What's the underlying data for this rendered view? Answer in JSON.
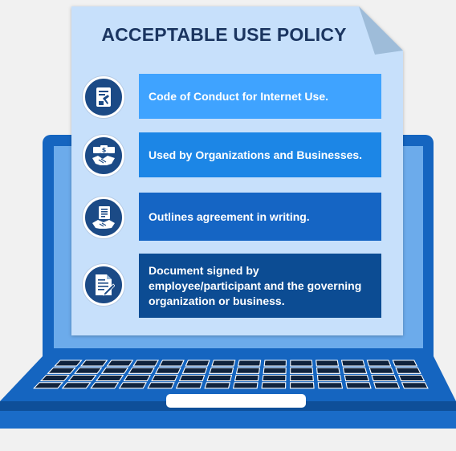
{
  "title": "ACCEPTABLE USE POLICY",
  "items": [
    {
      "text": "Code of Conduct for Internet Use.",
      "icon": "legal-document-icon"
    },
    {
      "text": "Used by Organizations and Businesses.",
      "icon": "business-handshake-icon"
    },
    {
      "text": "Outlines agreement in writing.",
      "icon": "agreement-handshake-icon"
    },
    {
      "text": "Document signed by employee/participant and the governing organization or business.",
      "icon": "signed-document-icon"
    }
  ],
  "colors": {
    "laptop": "#1565c0",
    "screen": "#6cabeb",
    "document": "#c7e0fb",
    "title": "#1b3560",
    "bar1": "#3fa3ff",
    "bar2": "#1c86e6",
    "bar3": "#1565c4",
    "bar4": "#0c4c93",
    "icon_circle": "#1b4a86"
  }
}
